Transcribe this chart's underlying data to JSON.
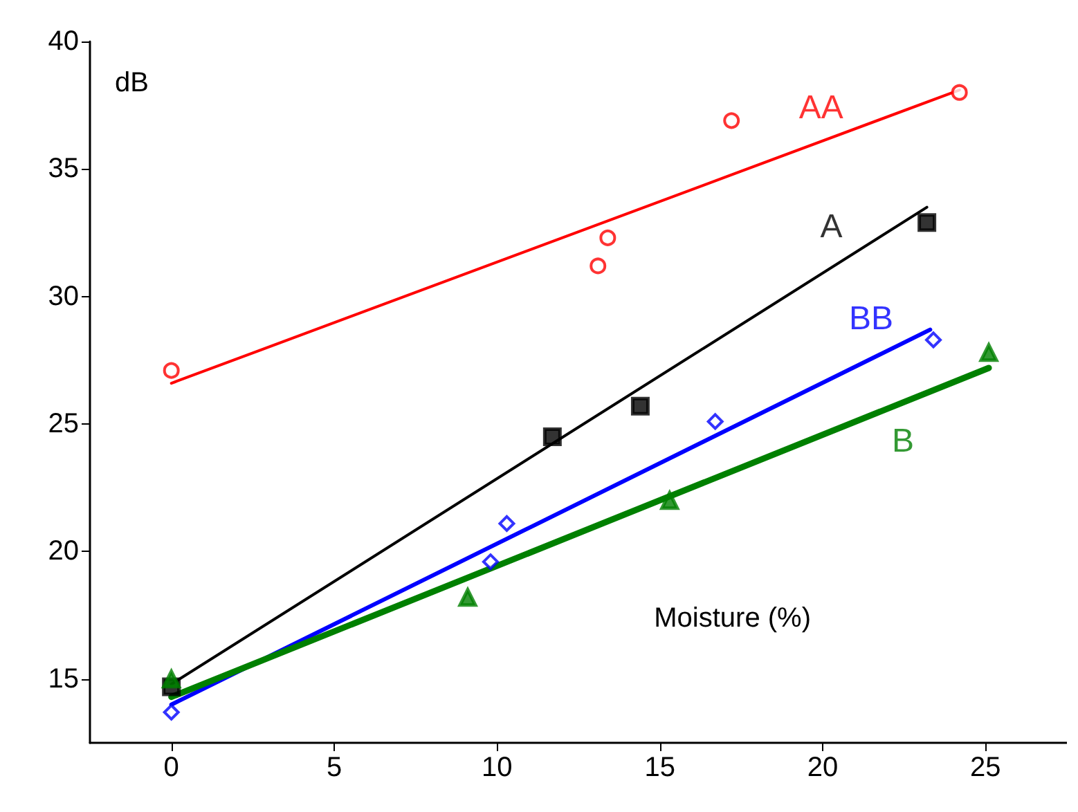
{
  "chart_data": {
    "type": "scatter",
    "xlabel": "Moisture (%)",
    "ylabel": "dB",
    "xlim": [
      -2.5,
      27.5
    ],
    "ylim": [
      12.5,
      40
    ],
    "xticks": [
      0,
      5,
      10,
      15,
      20,
      25
    ],
    "yticks": [
      15,
      20,
      25,
      30,
      35,
      40
    ],
    "grid": false,
    "legend": false,
    "series": [
      {
        "name": "AA",
        "marker": "circle",
        "color": "#ff0000",
        "x": [
          0,
          13.1,
          13.4,
          17.2,
          24.2
        ],
        "values": [
          27.1,
          31.2,
          32.3,
          36.9,
          38.0
        ]
      },
      {
        "name": "A",
        "marker": "square",
        "color": "#000000",
        "x": [
          0,
          11.7,
          14.4,
          23.2
        ],
        "values": [
          14.7,
          24.5,
          25.7,
          32.9
        ]
      },
      {
        "name": "BB",
        "marker": "diamond",
        "color": "#0000ff",
        "x": [
          0,
          9.8,
          10.3,
          16.7,
          23.4
        ],
        "values": [
          13.7,
          19.6,
          21.1,
          25.1,
          28.3
        ]
      },
      {
        "name": "B",
        "marker": "triangle",
        "color": "#008000",
        "x": [
          0,
          9.1,
          15.3,
          25.1
        ],
        "values": [
          15.0,
          18.2,
          22.0,
          27.8
        ]
      },
      {
        "type": "line",
        "color": "#ff0000",
        "x": [
          0,
          24.2
        ],
        "values": [
          26.6,
          38.1
        ]
      },
      {
        "type": "line",
        "color": "#000000",
        "x": [
          0,
          23.2
        ],
        "values": [
          14.8,
          33.5
        ]
      },
      {
        "type": "line",
        "color": "#0000ff",
        "x": [
          0,
          23.3
        ],
        "values": [
          14.0,
          28.7
        ]
      },
      {
        "type": "line",
        "color": "#008000",
        "x": [
          0,
          25.1
        ],
        "values": [
          14.3,
          27.2
        ]
      }
    ]
  }
}
